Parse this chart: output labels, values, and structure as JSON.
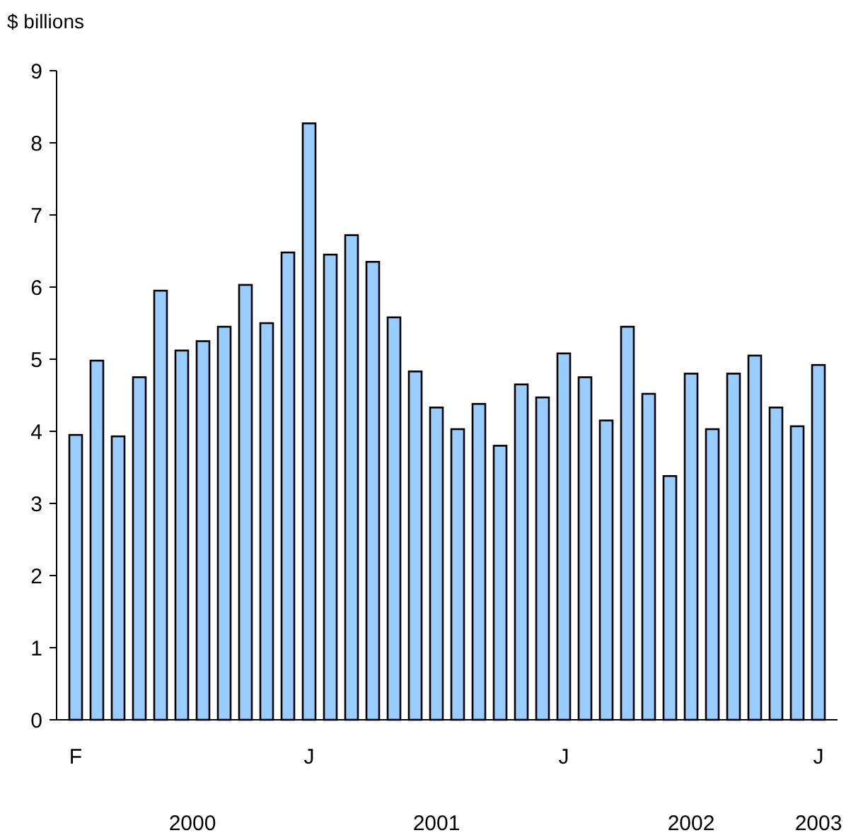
{
  "chart_data": {
    "type": "bar",
    "ylabel": "$ billions",
    "categories": [
      "F",
      null,
      null,
      null,
      null,
      null,
      null,
      null,
      null,
      null,
      null,
      "J",
      null,
      null,
      null,
      null,
      null,
      null,
      null,
      null,
      null,
      null,
      null,
      "J",
      null,
      null,
      null,
      null,
      null,
      null,
      null,
      null,
      null,
      null,
      null,
      "J"
    ],
    "values": [
      3.95,
      4.98,
      3.93,
      4.75,
      5.95,
      5.12,
      5.25,
      5.45,
      6.03,
      5.5,
      6.48,
      8.27,
      6.45,
      6.72,
      6.35,
      5.58,
      4.83,
      4.33,
      4.03,
      4.38,
      3.8,
      4.65,
      4.47,
      5.08,
      4.75,
      4.15,
      5.45,
      4.52,
      3.38,
      4.8,
      4.03,
      4.8,
      5.05,
      4.33,
      4.07,
      4.92
    ],
    "color": "#99ccff",
    "ylim": [
      0,
      9
    ],
    "yticks": [
      0,
      1,
      2,
      3,
      4,
      5,
      6,
      7,
      8,
      9
    ],
    "annotations": [
      "2000",
      "2001",
      "2002",
      "2003"
    ]
  }
}
